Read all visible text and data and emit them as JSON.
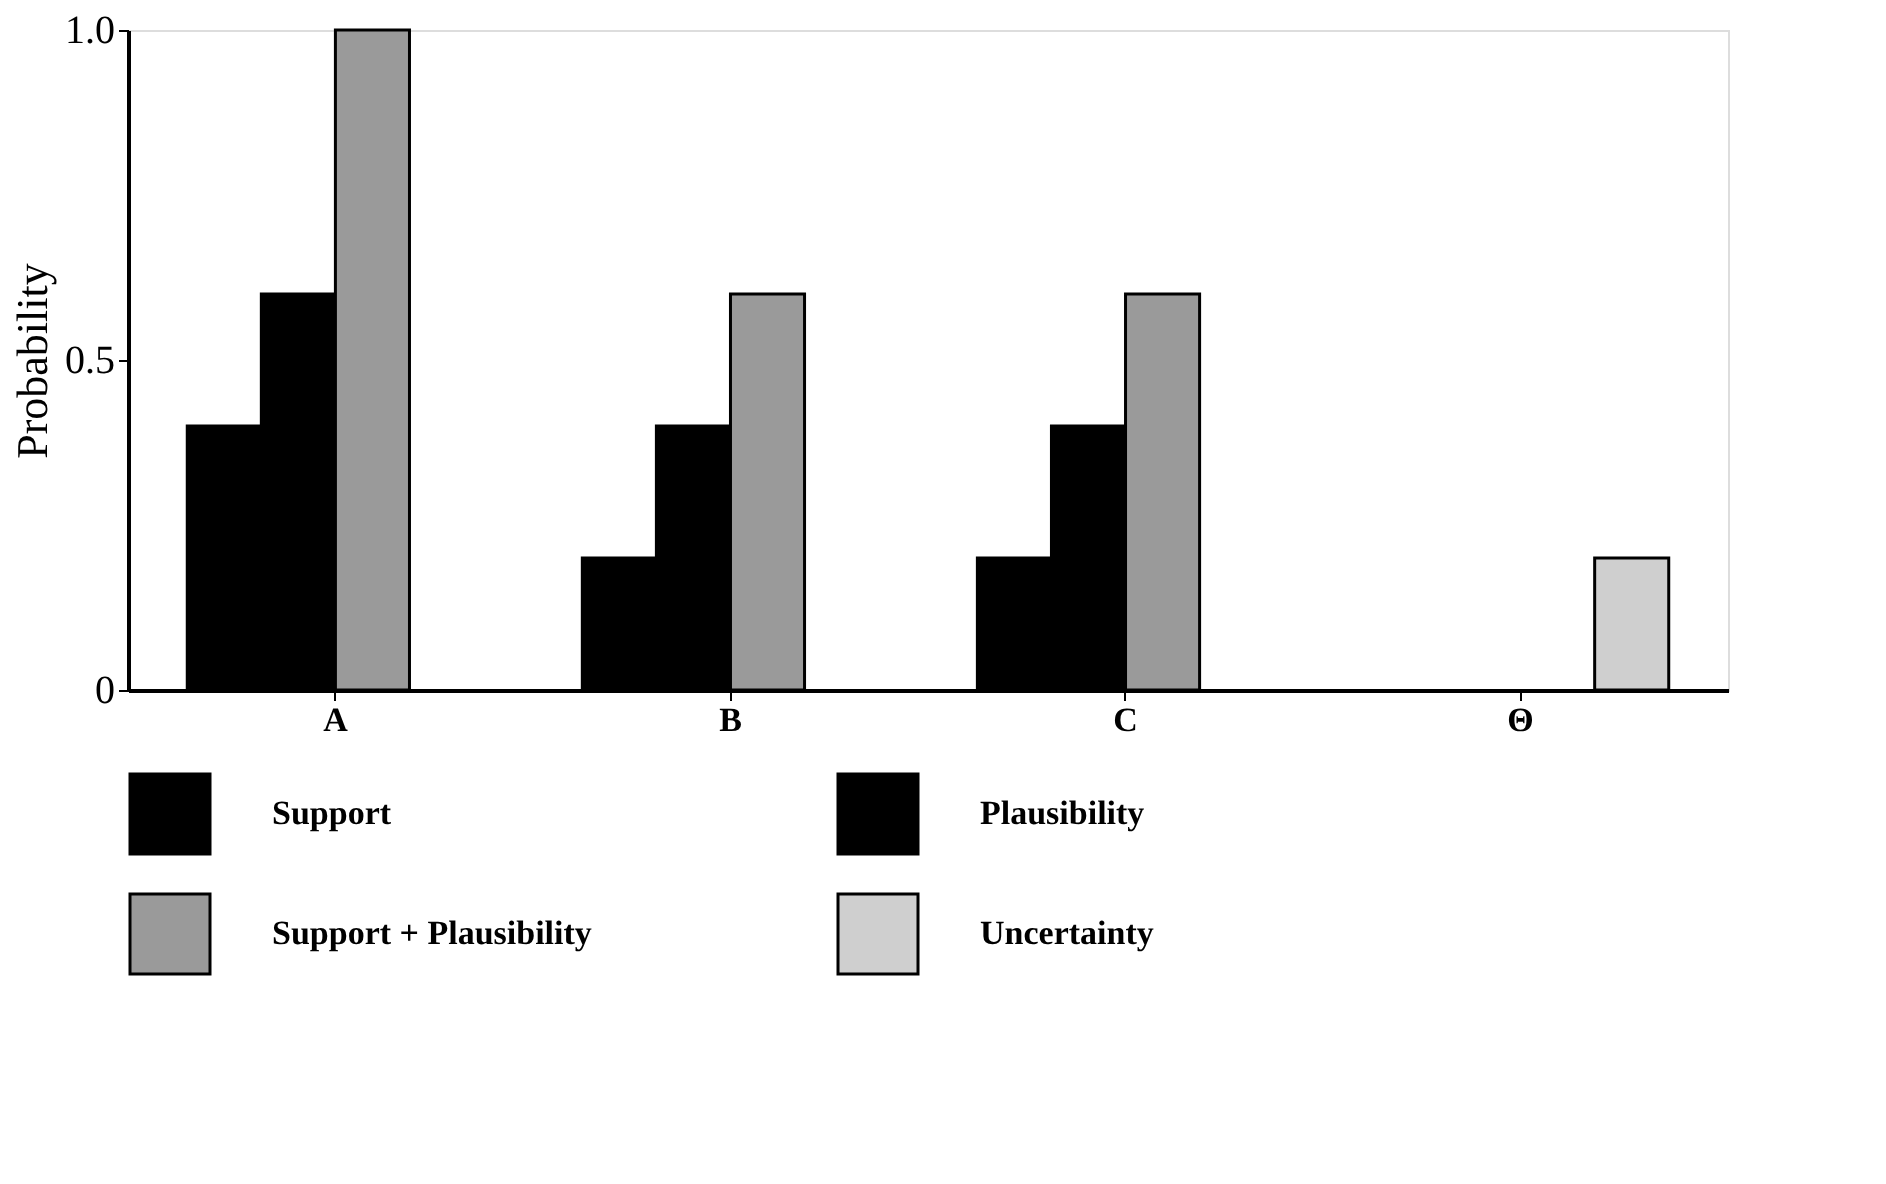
{
  "chart_data": {
    "type": "bar",
    "ylabel": "Probability",
    "categories": [
      "A",
      "B",
      "C",
      "Θ"
    ],
    "series": [
      {
        "name": "Support",
        "color": "#000000",
        "values": [
          0.4,
          0.2,
          0.2,
          null
        ]
      },
      {
        "name": "Plausibility",
        "color": "#000000",
        "values": [
          0.6,
          0.4,
          0.4,
          null
        ]
      },
      {
        "name": "Support + Plausibility",
        "color": "#9a9a9a",
        "values": [
          1.0,
          0.6,
          0.6,
          null
        ]
      },
      {
        "name": "Uncertainty",
        "color": "#cfcfcf",
        "values": [
          null,
          null,
          null,
          0.2
        ]
      }
    ],
    "ylim": [
      0,
      1.0
    ],
    "yticks": [
      0,
      0.5,
      {
        "value": 1.0,
        "label": "1.0"
      }
    ],
    "grid": false,
    "legend": "bottom"
  }
}
